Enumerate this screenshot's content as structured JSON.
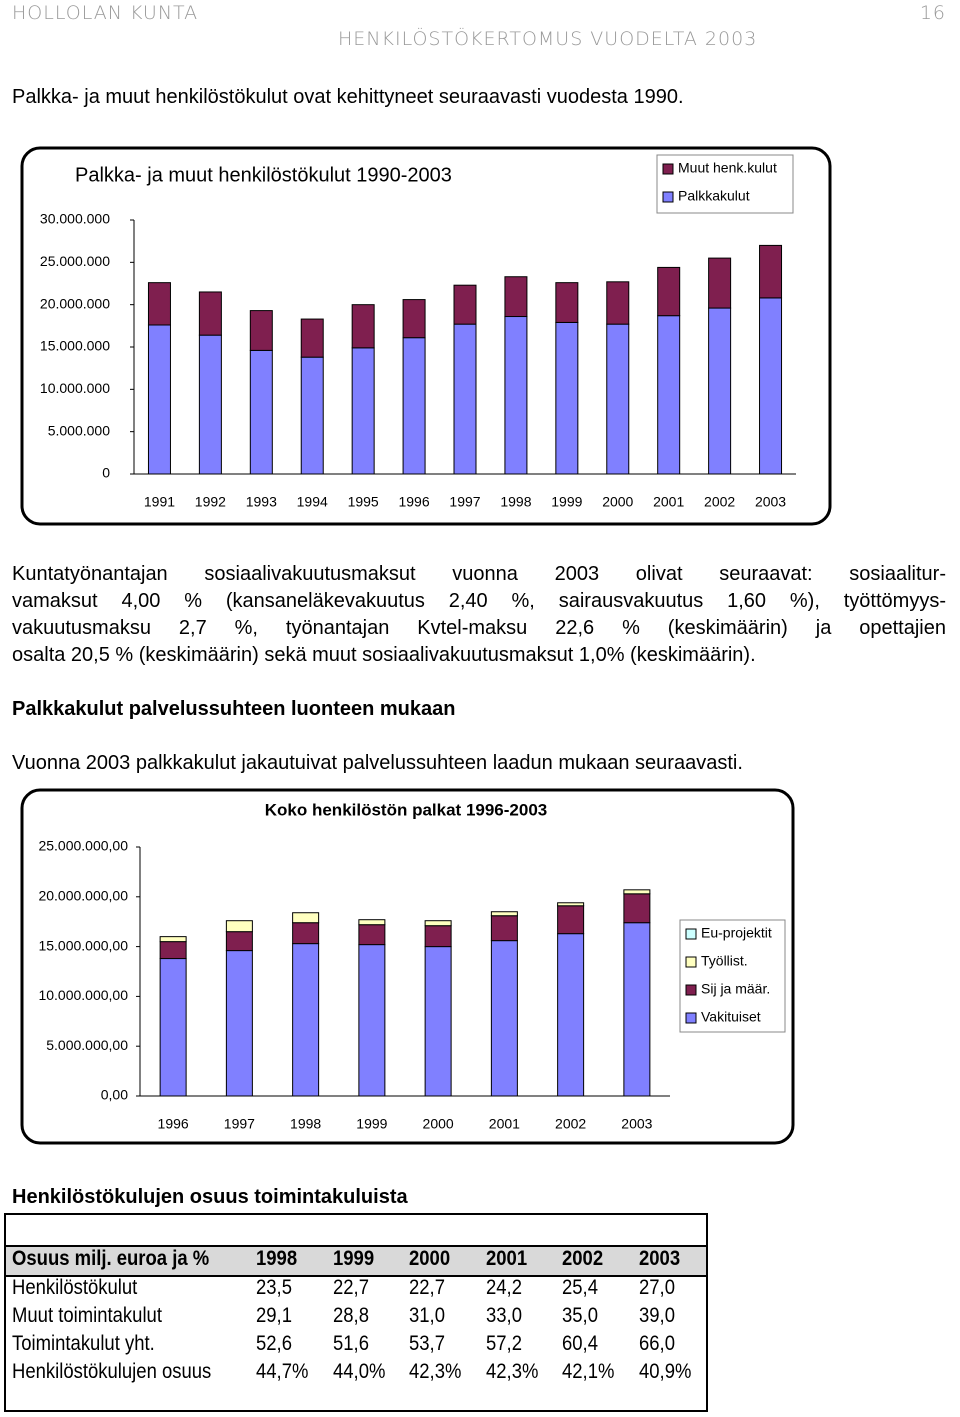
{
  "header": {
    "org": "HOLLOLAN KUNTA",
    "page": "16",
    "report": "HENKILÖSTÖKERTOMUS VUODELTA 2003"
  },
  "intro": "Palkka- ja muut henkilöstökulut ovat kehittyneet seuraavasti vuodesta 1990.",
  "chart_data": [
    {
      "type": "bar",
      "stacked": true,
      "title": "Palkka- ja muut henkilöstökulut 1990-2003",
      "categories": [
        "1991",
        "1992",
        "1993",
        "1994",
        "1995",
        "1996",
        "1997",
        "1998",
        "1999",
        "2000",
        "2001",
        "2002",
        "2003"
      ],
      "series": [
        {
          "name": "Palkkakulut",
          "color": "#8080ff",
          "values": [
            17600000,
            16400000,
            14600000,
            13800000,
            14900000,
            16100000,
            17700000,
            18600000,
            17900000,
            17700000,
            18700000,
            19600000,
            20800000
          ]
        },
        {
          "name": "Muut henk.kulut",
          "color": "#7f1f4f",
          "values": [
            5000000,
            5100000,
            4700000,
            4500000,
            5100000,
            4500000,
            4600000,
            4700000,
            4700000,
            5000000,
            5700000,
            5900000,
            6200000
          ]
        }
      ],
      "ylim": [
        0,
        30000000
      ],
      "yticks": [
        0,
        {
          "value": 5000000,
          "label": "5.000.000"
        },
        {
          "value": 10000000,
          "label": "10.000.000"
        },
        {
          "value": 15000000,
          "label": "15.000.000"
        },
        {
          "value": 20000000,
          "label": "20.000.000"
        },
        {
          "value": 25000000,
          "label": "25.000.000"
        },
        {
          "value": 30000000,
          "label": "30.000.000"
        }
      ],
      "grid": false,
      "legend": "top-right"
    },
    {
      "type": "bar",
      "stacked": true,
      "title": "Koko henkilöstön palkat 1996-2003",
      "categories": [
        "1996",
        "1997",
        "1998",
        "1999",
        "2000",
        "2001",
        "2002",
        "2003"
      ],
      "series": [
        {
          "name": "Vakituiset",
          "color": "#8080ff",
          "values": [
            13800000,
            14600000,
            15300000,
            15200000,
            15000000,
            15600000,
            16300000,
            17400000
          ]
        },
        {
          "name": "Sij ja määr.",
          "color": "#7f1f4f",
          "values": [
            1700000,
            1900000,
            2100000,
            2000000,
            2100000,
            2500000,
            2800000,
            2900000
          ]
        },
        {
          "name": "Työllist.",
          "color": "#ffffc0",
          "values": [
            500000,
            1100000,
            1000000,
            500000,
            500000,
            400000,
            300000,
            400000
          ]
        },
        {
          "name": "Eu-projektit",
          "color": "#ccffff",
          "values": [
            0,
            0,
            0,
            0,
            0,
            0,
            0,
            0
          ]
        }
      ],
      "ylim": [
        0,
        25000000
      ],
      "yticks": [
        {
          "value": 0,
          "label": "0,00"
        },
        {
          "value": 5000000,
          "label": "5.000.000,00"
        },
        {
          "value": 10000000,
          "label": "10.000.000,00"
        },
        {
          "value": 15000000,
          "label": "15.000.000,00"
        },
        {
          "value": 20000000,
          "label": "20.000.000,00"
        },
        {
          "value": 25000000,
          "label": "25.000.000,00"
        }
      ],
      "grid": false,
      "legend": "right"
    }
  ],
  "paragraph_lines": [
    "Kuntatyönantajan sosiaalivakuutusmaksut vuonna 2003 olivat seuraavat: sosiaalitur-",
    "vamaksut 4,00 % (kansaneläkevakuutus 2,40 %, sairausvakuutus 1,60 %), työttömyys-",
    "vakuutusmaksu 2,7 %, työnantajan Kvtel-maksu 22,6 % (keskimäärin) ja opettajien",
    "osalta 20,5 % (keskimäärin) sekä muut sosiaalivakuutusmaksut 1,0% (keskimäärin)."
  ],
  "section_heading": "Palkkakulut palvelussuhteen luonteen mukaan",
  "section_text": "Vuonna 2003 palkkakulut jakautuivat palvelussuhteen laadun mukaan seuraavasti.",
  "table_heading": "Henkilöstökulujen osuus toimintakuluista",
  "table": {
    "header": [
      "Osuus milj. euroa ja %",
      "1998",
      "1999",
      "2000",
      "2001",
      "2002",
      "2003"
    ],
    "rows": [
      [
        "Henkilöstökulut",
        "23,5",
        "22,7",
        "22,7",
        "24,2",
        "25,4",
        "27,0"
      ],
      [
        "Muut toimintakulut",
        "29,1",
        "28,8",
        "31,0",
        "33,0",
        "35,0",
        "39,0"
      ],
      [
        "Toimintakulut yht.",
        "52,6",
        "51,6",
        "53,7",
        "57,2",
        "60,4",
        "66,0"
      ],
      [
        "Henkilöstökulujen osuus",
        "44,7%",
        "44,0%",
        "42,3%",
        "42,3%",
        "42,1%",
        "40,9%"
      ]
    ]
  }
}
